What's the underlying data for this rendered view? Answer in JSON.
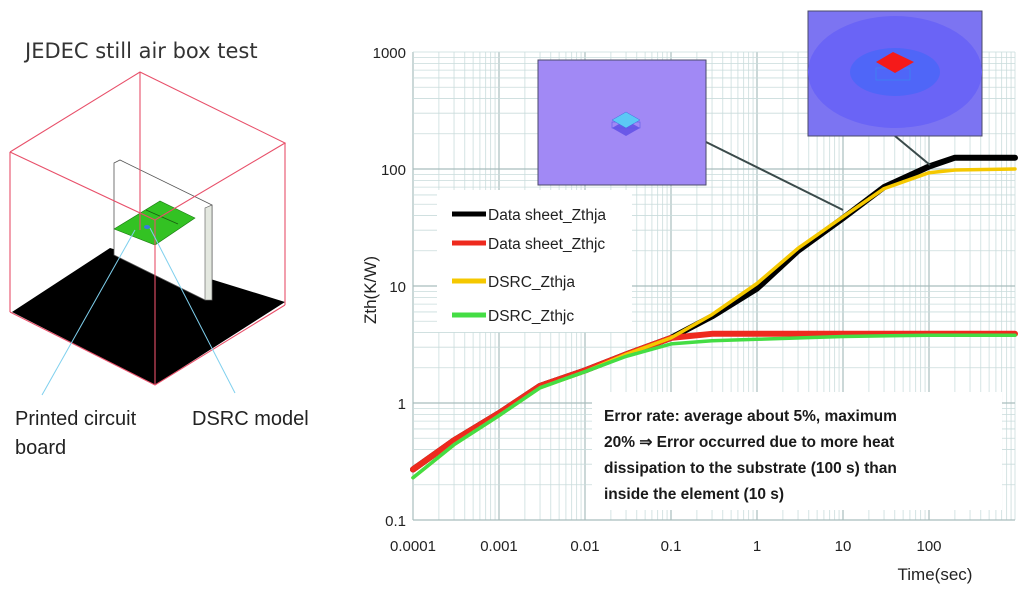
{
  "diagram": {
    "title": "JEDEC still air box test",
    "label_pcb_line1": "Printed circuit",
    "label_pcb_line2": "board",
    "label_model": "DSRC model"
  },
  "annotation": {
    "lines": [
      "Error rate: average about 5%, maximum",
      "20% ⇒ Error occurred due to more heat",
      "dissipation to the substrate (100 s) than",
      "inside the element (10 s)"
    ]
  },
  "chart_data": {
    "type": "line",
    "xlabel": "Time(sec)",
    "ylabel": "Zth(K/W)",
    "xscale": "log",
    "yscale": "log",
    "xlim": [
      0.0001,
      1000
    ],
    "ylim": [
      0.1,
      1000
    ],
    "grid": true,
    "legend_position": "center-left",
    "x_ticks": [
      "0.0001",
      "0.001",
      "0.01",
      "0.1",
      "1",
      "10",
      "100"
    ],
    "y_ticks": [
      "0.1",
      "1",
      "10",
      "100",
      "1000"
    ],
    "series": [
      {
        "name": "Data sheet_Zthja",
        "color": "#000000",
        "x": [
          0.0001,
          0.0003,
          0.001,
          0.003,
          0.01,
          0.03,
          0.1,
          0.3,
          1,
          3,
          10,
          30,
          100,
          200,
          1000
        ],
        "y": [
          0.27,
          0.48,
          0.82,
          1.4,
          1.9,
          2.6,
          3.6,
          5.5,
          9.5,
          20,
          38,
          70,
          105,
          125,
          125
        ]
      },
      {
        "name": "Data sheet_Zthjc",
        "color": "#ee2a1e",
        "x": [
          0.0001,
          0.0003,
          0.001,
          0.003,
          0.01,
          0.03,
          0.1,
          0.3,
          1,
          10,
          100,
          1000
        ],
        "y": [
          0.27,
          0.48,
          0.82,
          1.4,
          1.9,
          2.6,
          3.6,
          3.9,
          3.9,
          3.9,
          3.9,
          3.9
        ]
      },
      {
        "name": "DSRC_Zthja",
        "color": "#f5c800",
        "x": [
          0.0001,
          0.0003,
          0.001,
          0.003,
          0.01,
          0.03,
          0.1,
          0.3,
          1,
          3,
          10,
          30,
          100,
          200,
          1000
        ],
        "y": [
          0.23,
          0.44,
          0.78,
          1.35,
          1.85,
          2.6,
          3.6,
          5.7,
          10.5,
          21,
          39,
          68,
          93,
          98,
          100
        ]
      },
      {
        "name": "DSRC_Zthjc",
        "color": "#44dd44",
        "x": [
          0.0001,
          0.0003,
          0.001,
          0.003,
          0.01,
          0.03,
          0.1,
          0.3,
          1,
          10,
          100,
          1000
        ],
        "y": [
          0.23,
          0.44,
          0.78,
          1.35,
          1.85,
          2.5,
          3.2,
          3.4,
          3.5,
          3.7,
          3.8,
          3.8
        ]
      }
    ]
  },
  "colors": {
    "grid": "#c9dcdc",
    "box_edges": "#e8506a",
    "pcb": "#33c223",
    "leader": "#7fd0ee",
    "inset_bg": "#a189f5",
    "inset2_bg": "#7c74f2"
  }
}
